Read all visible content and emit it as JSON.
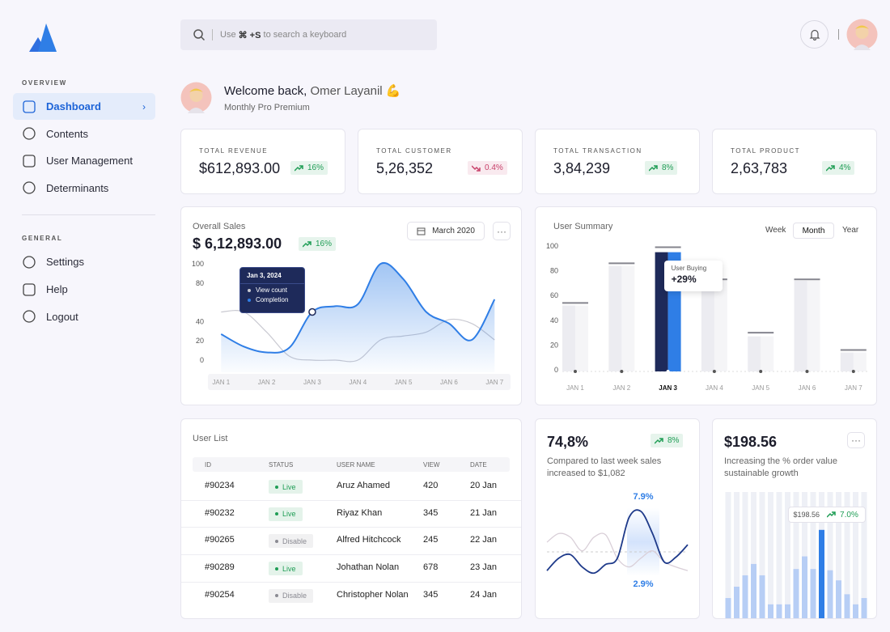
{
  "sidebar": {
    "sections": [
      {
        "title": "OVERVIEW",
        "items": [
          "Dashboard",
          "Contents",
          "User Management",
          "Determinants"
        ],
        "active_index": 0
      },
      {
        "title": "GENERAL",
        "items": [
          "Settings",
          "Help",
          "Logout"
        ]
      }
    ]
  },
  "search": {
    "prefix": "Use",
    "shortcut": "⌘ +S",
    "suffix": "to search a keyboard"
  },
  "welcome": {
    "greeting": "Welcome back,",
    "name": "Omer Layanil 💪",
    "plan": "Monthly Pro Premium"
  },
  "stats": [
    {
      "label": "TOTAL REVENUE",
      "value": "$612,893.00",
      "change": "16%",
      "trend": "up",
      "color": "#1f9d55"
    },
    {
      "label": "TOTAL CUSTOMER",
      "value": "5,26,352",
      "change": "0.4%",
      "trend": "down",
      "color": "#c8416a"
    },
    {
      "label": "TOTAL TRANSACTION",
      "value": "3,84,239",
      "change": "8%",
      "trend": "up",
      "color": "#1f9d55"
    },
    {
      "label": "TOTAL PRODUCT",
      "value": "2,63,783",
      "change": "4%",
      "trend": "up",
      "color": "#1f9d55"
    }
  ],
  "chart_data": [
    {
      "type": "line",
      "title": "Overall Sales",
      "total": "$ 6,12,893.00",
      "change": "16%",
      "change_color": "#1f9d55",
      "date_button": "March 2020",
      "x": [
        1,
        1.5,
        2,
        2.5,
        3,
        3.5,
        4,
        4.5,
        5,
        5.5,
        6,
        6.5,
        7
      ],
      "xlim": [
        0.8,
        7.35
      ],
      "xticks": [
        {
          "value": 1,
          "label": "JAN 1"
        },
        {
          "value": 2,
          "label": "JAN 2"
        },
        {
          "value": 3,
          "label": "JAN 3"
        },
        {
          "value": 4,
          "label": "JAN 4"
        },
        {
          "value": 5,
          "label": "JAN 5"
        },
        {
          "value": 6,
          "label": "JAN 6"
        },
        {
          "value": 7,
          "label": "JAN 7"
        }
      ],
      "ylim": [
        0,
        100
      ],
      "yticks": [
        0,
        20,
        40,
        80,
        100
      ],
      "series": [
        {
          "name": "View count",
          "color": "#c9c9d1",
          "values": [
            50,
            50,
            29,
            4,
            0,
            0,
            0,
            21,
            25,
            29,
            42,
            38,
            21
          ]
        },
        {
          "name": "Completion",
          "color": "#2f7ee6",
          "fill": true,
          "values": [
            27,
            14,
            8,
            13,
            50,
            56,
            58,
            100,
            84,
            50,
            38,
            21,
            63
          ]
        }
      ],
      "tooltip": {
        "title": "Jan 3, 2024",
        "x": 3
      }
    },
    {
      "type": "bar",
      "title": "User Summary",
      "tabs": [
        "Week",
        "Month",
        "Year"
      ],
      "active_tab": 1,
      "categories": [
        "JAN 1",
        "JAN 2",
        "JAN 3",
        "JAN 4",
        "JAN 5",
        "JAN 6",
        "JAN 7"
      ],
      "values": [
        52,
        84,
        95,
        72,
        27,
        72,
        14
      ],
      "targets": [
        54,
        86,
        99,
        73,
        30,
        73,
        16
      ],
      "color": "#ececf1",
      "highlight_index": 2,
      "highlight_colors": [
        "#1e2a5a",
        "#2f7ee6"
      ],
      "target_color": "#85858e",
      "ylim": [
        0,
        100
      ],
      "yticks": [
        0,
        20,
        40,
        60,
        80,
        100
      ],
      "tooltip": {
        "label": "User Buying",
        "value": "+29%"
      }
    },
    {
      "type": "line",
      "value": "74,8%",
      "change": "8%",
      "change_color": "#1f9d55",
      "description": "Compared to last week sales increased to $1,082",
      "high_label": "7.9%",
      "low_label": "2.9%",
      "ylim": [
        2,
        9
      ],
      "series": [
        {
          "color": "#1e3a8a",
          "values": [
            3.1,
            4.1,
            4.4,
            3.4,
            2.9,
            3.6,
            4.1,
            7.4,
            7.9,
            6.1,
            3.8,
            4.2,
            5.2
          ]
        },
        {
          "color": "#d9cfd8",
          "values": [
            5.4,
            6.1,
            5.8,
            4.7,
            5.8,
            6.0,
            4.1,
            3.4,
            4.1,
            4.7,
            3.8,
            3.4,
            3.1
          ]
        }
      ]
    },
    {
      "type": "bar",
      "value": "$198.56",
      "description": "Increasing the % order value sustainable growth",
      "values": [
        16,
        25,
        34,
        43,
        34,
        11,
        11,
        11,
        39,
        49,
        39,
        70,
        38,
        30,
        19,
        11,
        16
      ],
      "ylim": [
        0,
        100
      ],
      "color": "#b7cef5",
      "highlight_index": 11,
      "highlight_color": "#2f7ee6",
      "track_color": "#eef0f6",
      "tooltip": {
        "value": "$198.56",
        "change": "7.0%",
        "change_color": "#1f9d55"
      }
    }
  ],
  "user_list": {
    "title": "User List",
    "columns": [
      "ID",
      "STATUS",
      "USER NAME",
      "VIEW",
      "DATE"
    ],
    "rows": [
      {
        "id": "#90234",
        "status": "Live",
        "status_color": "#1f9d55",
        "name": "Aruz Ahamed",
        "view": "420",
        "date": "20 Jan"
      },
      {
        "id": "#90232",
        "status": "Live",
        "status_color": "#1f9d55",
        "name": "Riyaz Khan",
        "view": "345",
        "date": "21 Jan"
      },
      {
        "id": "#90265",
        "status": "Disable",
        "status_color": "#8a8a92",
        "name": "Alfred Hitchcock",
        "view": "245",
        "date": "22 Jan"
      },
      {
        "id": "#90289",
        "status": "Live",
        "status_color": "#1f9d55",
        "name": "Johathan Nolan",
        "view": "678",
        "date": "23 Jan"
      },
      {
        "id": "#90254",
        "status": "Disable",
        "status_color": "#8a8a92",
        "name": "Christopher Nolan",
        "view": "345",
        "date": "24 Jan"
      }
    ]
  }
}
